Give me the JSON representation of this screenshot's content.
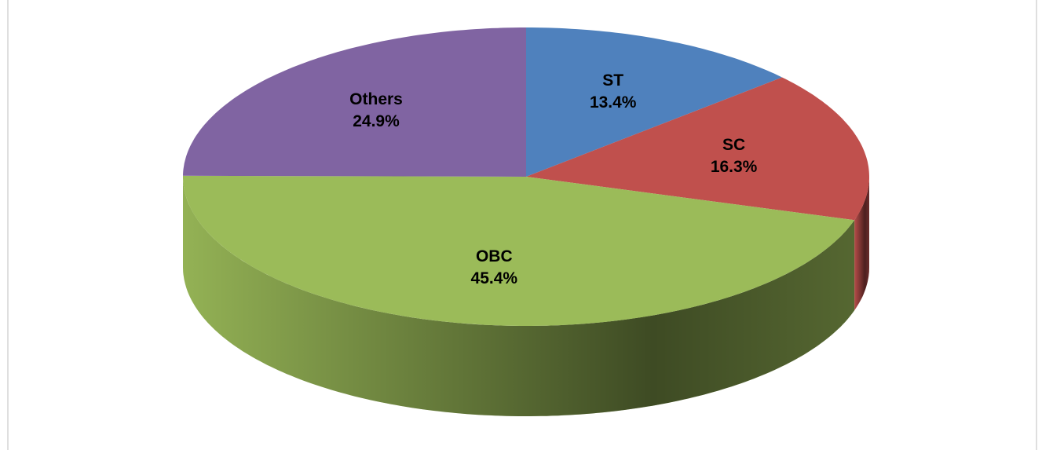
{
  "chart_data": {
    "type": "pie",
    "categories": [
      "ST",
      "SC",
      "OBC",
      "Others"
    ],
    "values": [
      13.4,
      16.3,
      45.4,
      24.9
    ],
    "value_labels": [
      "13.4%",
      "16.3%",
      "45.4%",
      "24.9%"
    ],
    "colors": [
      "#4f81bd",
      "#c0504d",
      "#9bbb59",
      "#8064a2"
    ]
  }
}
